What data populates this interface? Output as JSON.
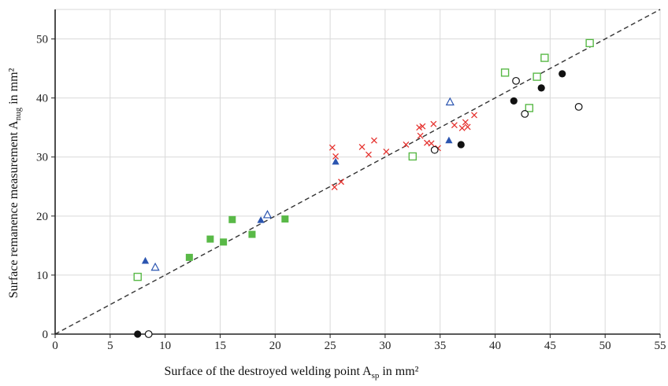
{
  "chart_data": {
    "type": "scatter",
    "xlabel": {
      "main": "Surface of the destroyed welding point A",
      "sub": "sp",
      "tail": " in mm²"
    },
    "ylabel": {
      "main": "Surface remanence measurement A",
      "sub": "nug",
      "tail": " in mm²"
    },
    "xlim": [
      0,
      55
    ],
    "ylim": [
      0,
      55
    ],
    "xticks": [
      0,
      5,
      10,
      15,
      20,
      25,
      30,
      35,
      40,
      45,
      50,
      55
    ],
    "yticks": [
      0,
      10,
      20,
      30,
      40,
      50
    ],
    "grid": true,
    "reference_line": {
      "from": [
        0,
        0
      ],
      "to": [
        55,
        55
      ],
      "style": "dashed"
    },
    "colors": {
      "green": "#59b947",
      "blue": "#2b55b0",
      "red": "#e5322e",
      "black": "#111111",
      "grid": "#d9d9d9",
      "axis": "#222222"
    },
    "series": [
      {
        "marker": "square-filled",
        "color": "#59b947",
        "points": [
          [
            12.2,
            13.0
          ],
          [
            14.1,
            16.1
          ],
          [
            15.3,
            15.6
          ],
          [
            16.1,
            19.4
          ],
          [
            17.9,
            16.9
          ],
          [
            20.9,
            19.5
          ]
        ]
      },
      {
        "marker": "square-open",
        "color": "#59b947",
        "points": [
          [
            7.5,
            9.7
          ],
          [
            32.5,
            30.1
          ],
          [
            40.9,
            44.3
          ],
          [
            43.1,
            38.3
          ],
          [
            43.8,
            43.6
          ],
          [
            44.5,
            46.8
          ],
          [
            48.6,
            49.3
          ]
        ]
      },
      {
        "marker": "triangle-filled",
        "color": "#2b55b0",
        "points": [
          [
            8.2,
            12.4
          ],
          [
            18.7,
            19.3
          ],
          [
            25.5,
            29.2
          ],
          [
            35.8,
            32.8
          ]
        ]
      },
      {
        "marker": "triangle-open",
        "color": "#2b55b0",
        "points": [
          [
            9.1,
            11.3
          ],
          [
            19.3,
            20.2
          ],
          [
            35.9,
            39.3
          ]
        ]
      },
      {
        "marker": "cross",
        "color": "#e5322e",
        "points": [
          [
            25.2,
            31.6
          ],
          [
            25.5,
            30.1
          ],
          [
            25.4,
            24.9
          ],
          [
            26.0,
            25.8
          ],
          [
            27.9,
            31.7
          ],
          [
            28.5,
            30.4
          ],
          [
            29.0,
            32.8
          ],
          [
            30.1,
            30.9
          ],
          [
            31.9,
            32.1
          ],
          [
            33.1,
            35.0
          ],
          [
            33.4,
            35.2
          ],
          [
            33.2,
            33.6
          ],
          [
            33.8,
            32.4
          ],
          [
            34.2,
            32.3
          ],
          [
            34.4,
            35.6
          ],
          [
            34.8,
            31.5
          ],
          [
            36.3,
            35.4
          ],
          [
            37.0,
            34.9
          ],
          [
            37.3,
            35.9
          ],
          [
            37.5,
            35.1
          ],
          [
            38.1,
            37.1
          ]
        ]
      },
      {
        "marker": "circle-filled",
        "color": "#111111",
        "points": [
          [
            7.5,
            0
          ],
          [
            36.9,
            32.1
          ],
          [
            41.7,
            39.5
          ],
          [
            44.2,
            41.7
          ],
          [
            46.1,
            44.1
          ]
        ]
      },
      {
        "marker": "circle-open",
        "color": "#111111",
        "points": [
          [
            8.5,
            0
          ],
          [
            34.5,
            31.2
          ],
          [
            41.9,
            42.9
          ],
          [
            42.7,
            37.3
          ],
          [
            47.6,
            38.5
          ]
        ]
      }
    ]
  }
}
